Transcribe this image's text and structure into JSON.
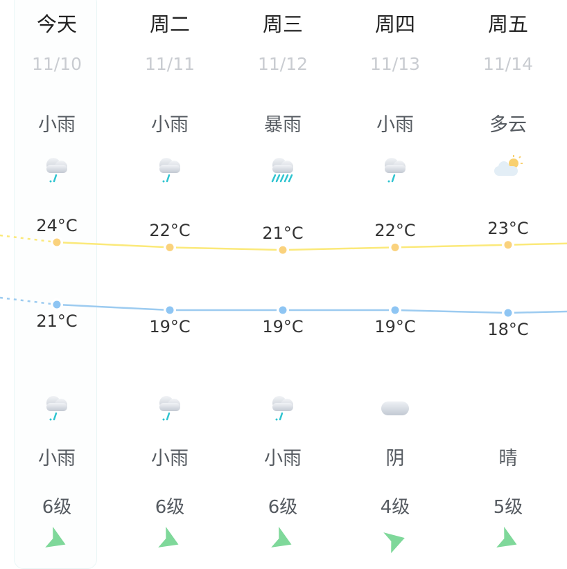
{
  "days": [
    {
      "name": "今天",
      "date": "11/10",
      "day_weather": "小雨",
      "day_icon": "light-rain-icon",
      "high": "24°C",
      "high_value": 24,
      "low": "21°C",
      "low_value": 21,
      "night_icon": "light-rain-icon",
      "night_weather": "小雨",
      "wind": "6级",
      "wind_dir_deg": 20
    },
    {
      "name": "周二",
      "date": "11/11",
      "day_weather": "小雨",
      "day_icon": "light-rain-icon",
      "high": "22°C",
      "high_value": 22,
      "low": "19°C",
      "low_value": 19,
      "night_icon": "light-rain-icon",
      "night_weather": "小雨",
      "wind": "6级",
      "wind_dir_deg": 20
    },
    {
      "name": "周三",
      "date": "11/12",
      "day_weather": "暴雨",
      "day_icon": "heavy-rain-icon",
      "high": "21°C",
      "high_value": 21,
      "low": "19°C",
      "low_value": 19,
      "night_icon": "light-rain-icon",
      "night_weather": "小雨",
      "wind": "6级",
      "wind_dir_deg": 20
    },
    {
      "name": "周四",
      "date": "11/13",
      "day_weather": "小雨",
      "day_icon": "light-rain-icon",
      "high": "22°C",
      "high_value": 22,
      "low": "19°C",
      "low_value": 19,
      "night_icon": "overcast-icon",
      "night_weather": "阴",
      "wind": "4级",
      "wind_dir_deg": -20
    },
    {
      "name": "周五",
      "date": "11/14",
      "day_weather": "多云",
      "day_icon": "partly-cloudy-icon",
      "high": "23°C",
      "high_value": 23,
      "low": "18°C",
      "low_value": 18,
      "night_icon": "moon-icon",
      "night_weather": "晴",
      "wind": "5级",
      "wind_dir_deg": 20
    }
  ],
  "colors": {
    "high_line": "#fbe97a",
    "high_dot": "#fad27d",
    "low_line": "#9ccbf0",
    "low_dot": "#8ec5f3",
    "wind_arrow": "#7fd89a",
    "rain": "#2fc4d0"
  }
}
